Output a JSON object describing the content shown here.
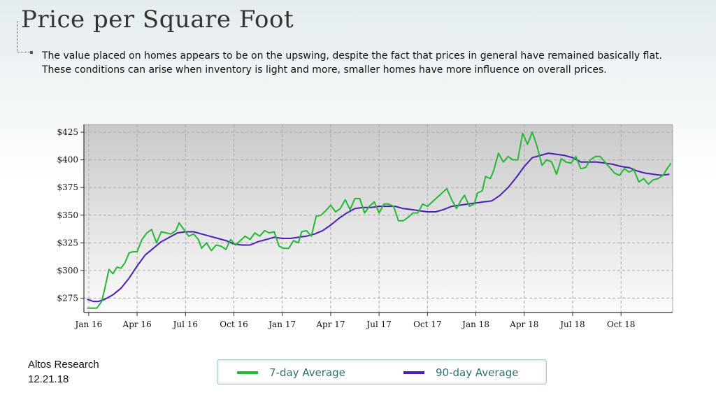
{
  "title": "Price per Square Foot",
  "description": [
    "The value placed on homes appears to be on the upswing, despite the fact that prices in general have remained basically flat.",
    "These conditions can arise when inventory is light and more, smaller homes have more influence on overall prices."
  ],
  "source": {
    "name": "Altos Research",
    "date": "12.21.18"
  },
  "legend": {
    "seven_day": "7-day Average",
    "ninety_day": "90-day Average"
  },
  "chart_data": {
    "type": "line",
    "title": "",
    "xlabel": "",
    "ylabel": "",
    "ylim": [
      262,
      432
    ],
    "xlim": [
      -0.3,
      36.2
    ],
    "grid": true,
    "legend_position": "bottom",
    "y_ticks": [
      275,
      300,
      325,
      350,
      375,
      400,
      425
    ],
    "y_tick_labels": [
      "$275",
      "$300",
      "$325",
      "$350",
      "$375",
      "$400",
      "$425"
    ],
    "x_ticks": [
      0,
      3,
      6,
      9,
      12,
      15,
      18,
      21,
      24,
      27,
      30,
      33
    ],
    "x_tick_labels": [
      "Jan 16",
      "Apr 16",
      "Jul 16",
      "Oct 16",
      "Jan 17",
      "Apr 17",
      "Jul 17",
      "Oct 17",
      "Jan 18",
      "Apr 18",
      "Jul 18",
      "Oct 18"
    ],
    "series": [
      {
        "name": "7-day Average",
        "color": "#22b833",
        "points": [
          [
            -0.1,
            266
          ],
          [
            0.2,
            266
          ],
          [
            0.5,
            266
          ],
          [
            0.8,
            272
          ],
          [
            1.0,
            284
          ],
          [
            1.25,
            301
          ],
          [
            1.5,
            297
          ],
          [
            1.75,
            303
          ],
          [
            2.0,
            302
          ],
          [
            2.25,
            307
          ],
          [
            2.5,
            316
          ],
          [
            2.75,
            317
          ],
          [
            3.0,
            317
          ],
          [
            3.3,
            328
          ],
          [
            3.6,
            334
          ],
          [
            3.9,
            337
          ],
          [
            4.2,
            325
          ],
          [
            4.5,
            335
          ],
          [
            4.8,
            334
          ],
          [
            5.1,
            333
          ],
          [
            5.4,
            336
          ],
          [
            5.6,
            343
          ],
          [
            5.9,
            337
          ],
          [
            6.2,
            331
          ],
          [
            6.5,
            333
          ],
          [
            6.8,
            328
          ],
          [
            7.0,
            320
          ],
          [
            7.3,
            325
          ],
          [
            7.6,
            318
          ],
          [
            7.9,
            323
          ],
          [
            8.2,
            322
          ],
          [
            8.5,
            319
          ],
          [
            8.8,
            328
          ],
          [
            9.1,
            323
          ],
          [
            9.4,
            327
          ],
          [
            9.7,
            331
          ],
          [
            10.0,
            328
          ],
          [
            10.3,
            334
          ],
          [
            10.6,
            331
          ],
          [
            10.9,
            336
          ],
          [
            11.2,
            334
          ],
          [
            11.5,
            335
          ],
          [
            11.8,
            322
          ],
          [
            12.1,
            320
          ],
          [
            12.4,
            320
          ],
          [
            12.7,
            327
          ],
          [
            13.0,
            325
          ],
          [
            13.2,
            335
          ],
          [
            13.5,
            336
          ],
          [
            13.8,
            331
          ],
          [
            14.1,
            349
          ],
          [
            14.4,
            350
          ],
          [
            14.7,
            354
          ],
          [
            15.0,
            359
          ],
          [
            15.3,
            353
          ],
          [
            15.6,
            356
          ],
          [
            15.9,
            364
          ],
          [
            16.2,
            355
          ],
          [
            16.5,
            365
          ],
          [
            16.8,
            365
          ],
          [
            17.1,
            352
          ],
          [
            17.4,
            358
          ],
          [
            17.7,
            362
          ],
          [
            18.0,
            352
          ],
          [
            18.3,
            360
          ],
          [
            18.6,
            360
          ],
          [
            18.9,
            358
          ],
          [
            19.2,
            345
          ],
          [
            19.5,
            345
          ],
          [
            19.8,
            348
          ],
          [
            20.1,
            352
          ],
          [
            20.4,
            352
          ],
          [
            20.7,
            360
          ],
          [
            21.0,
            358
          ],
          [
            21.3,
            362
          ],
          [
            21.6,
            366
          ],
          [
            21.9,
            370
          ],
          [
            22.2,
            374
          ],
          [
            22.5,
            364
          ],
          [
            22.8,
            356
          ],
          [
            23.1,
            364
          ],
          [
            23.3,
            368
          ],
          [
            23.6,
            358
          ],
          [
            23.9,
            360
          ],
          [
            24.1,
            370
          ],
          [
            24.4,
            372
          ],
          [
            24.6,
            385
          ],
          [
            24.9,
            383
          ],
          [
            25.1,
            390
          ],
          [
            25.4,
            406
          ],
          [
            25.7,
            398
          ],
          [
            26.0,
            403
          ],
          [
            26.3,
            400
          ],
          [
            26.6,
            400
          ],
          [
            26.9,
            424
          ],
          [
            27.2,
            414
          ],
          [
            27.5,
            425
          ],
          [
            27.8,
            412
          ],
          [
            28.1,
            395
          ],
          [
            28.4,
            400
          ],
          [
            28.7,
            398
          ],
          [
            29.0,
            387
          ],
          [
            29.3,
            401
          ],
          [
            29.6,
            398
          ],
          [
            29.9,
            397
          ],
          [
            30.2,
            403
          ],
          [
            30.5,
            392
          ],
          [
            30.8,
            393
          ],
          [
            31.1,
            400
          ],
          [
            31.4,
            403
          ],
          [
            31.7,
            403
          ],
          [
            32.0,
            398
          ],
          [
            32.3,
            393
          ],
          [
            32.6,
            388
          ],
          [
            32.9,
            386
          ],
          [
            33.2,
            392
          ],
          [
            33.5,
            389
          ],
          [
            33.8,
            391
          ],
          [
            34.1,
            380
          ],
          [
            34.4,
            383
          ],
          [
            34.7,
            378
          ],
          [
            35.0,
            382
          ],
          [
            35.3,
            383
          ],
          [
            35.6,
            386
          ],
          [
            35.9,
            393
          ],
          [
            36.1,
            397
          ]
        ]
      },
      {
        "name": "90-day Average",
        "color": "#4b1eb5",
        "points": [
          [
            -0.1,
            274
          ],
          [
            0.3,
            272
          ],
          [
            0.6,
            272
          ],
          [
            1.0,
            274
          ],
          [
            1.5,
            278
          ],
          [
            2.0,
            284
          ],
          [
            2.5,
            293
          ],
          [
            3.0,
            304
          ],
          [
            3.5,
            314
          ],
          [
            4.0,
            320
          ],
          [
            4.5,
            326
          ],
          [
            5.0,
            330
          ],
          [
            5.5,
            334
          ],
          [
            6.0,
            335
          ],
          [
            6.5,
            335
          ],
          [
            7.0,
            333
          ],
          [
            7.5,
            331
          ],
          [
            8.0,
            329
          ],
          [
            8.5,
            327
          ],
          [
            9.0,
            324
          ],
          [
            9.5,
            323
          ],
          [
            10.0,
            323
          ],
          [
            10.5,
            326
          ],
          [
            11.0,
            328
          ],
          [
            11.5,
            330
          ],
          [
            12.0,
            329
          ],
          [
            12.5,
            329
          ],
          [
            13.0,
            330
          ],
          [
            13.5,
            331
          ],
          [
            14.0,
            333
          ],
          [
            14.5,
            336
          ],
          [
            15.0,
            341
          ],
          [
            15.5,
            347
          ],
          [
            16.0,
            352
          ],
          [
            16.5,
            356
          ],
          [
            17.0,
            357
          ],
          [
            17.5,
            357
          ],
          [
            18.0,
            358
          ],
          [
            18.5,
            358
          ],
          [
            19.0,
            358
          ],
          [
            19.5,
            356
          ],
          [
            20.0,
            355
          ],
          [
            20.5,
            354
          ],
          [
            21.0,
            353
          ],
          [
            21.5,
            353
          ],
          [
            22.0,
            355
          ],
          [
            22.5,
            358
          ],
          [
            23.0,
            359
          ],
          [
            23.5,
            360
          ],
          [
            24.0,
            361
          ],
          [
            24.5,
            362
          ],
          [
            25.0,
            363
          ],
          [
            25.5,
            368
          ],
          [
            26.0,
            375
          ],
          [
            26.5,
            384
          ],
          [
            27.0,
            394
          ],
          [
            27.5,
            402
          ],
          [
            28.0,
            404
          ],
          [
            28.5,
            406
          ],
          [
            29.0,
            405
          ],
          [
            29.5,
            404
          ],
          [
            30.0,
            402
          ],
          [
            30.5,
            398
          ],
          [
            31.0,
            398
          ],
          [
            31.5,
            398
          ],
          [
            32.0,
            397
          ],
          [
            32.5,
            396
          ],
          [
            33.0,
            394
          ],
          [
            33.5,
            393
          ],
          [
            34.0,
            390
          ],
          [
            34.5,
            388
          ],
          [
            35.0,
            387
          ],
          [
            35.5,
            386
          ],
          [
            36.0,
            387
          ]
        ]
      }
    ]
  }
}
